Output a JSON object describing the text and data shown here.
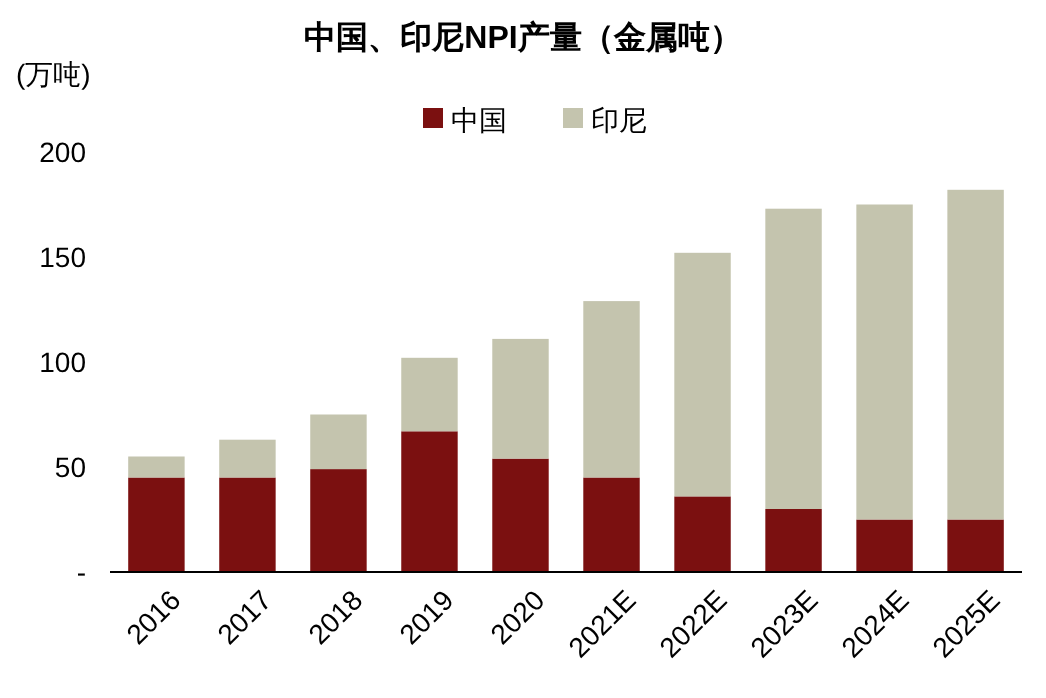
{
  "chart_data": {
    "type": "bar",
    "title": "中国、印尼NPI产量（金属吨）",
    "ylabel": "(万吨)",
    "categories": [
      "2016",
      "2017",
      "2018",
      "2019",
      "2020",
      "2021E",
      "2022E",
      "2023E",
      "2024E",
      "2025E"
    ],
    "stacked": true,
    "legend": "top",
    "ylim": [
      0,
      200
    ],
    "yticks": [
      {
        "value": 0,
        "label": "-"
      },
      50,
      100,
      150,
      200
    ],
    "series": [
      {
        "name": "中国",
        "color": "#7b1010",
        "values": [
          45,
          45,
          49,
          67,
          54,
          45,
          36,
          30,
          25,
          25
        ]
      },
      {
        "name": "印尼",
        "color": "#c4c4ae",
        "values": [
          10,
          18,
          26,
          35,
          57,
          84,
          116,
          143,
          150,
          157
        ]
      }
    ]
  }
}
